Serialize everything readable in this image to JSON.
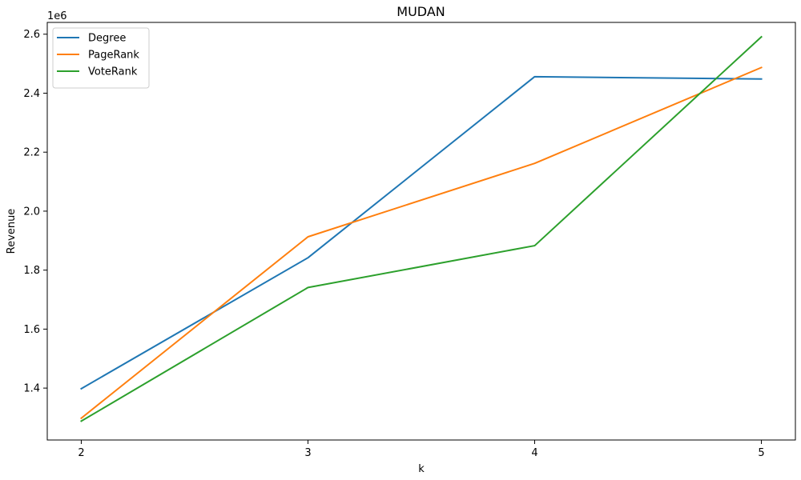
{
  "chart_data": {
    "type": "line",
    "title": "MUDAN",
    "xlabel": "k",
    "ylabel": "Revenue",
    "y_offset_label": "1e6",
    "x": [
      2,
      3,
      4,
      5
    ],
    "x_ticks": [
      "2",
      "3",
      "4",
      "5"
    ],
    "y_ticks": [
      1.4,
      1.6,
      1.8,
      2.0,
      2.2,
      2.4,
      2.6
    ],
    "y_tick_labels": [
      "1.4",
      "1.6",
      "1.8",
      "2.0",
      "2.2",
      "2.4",
      "2.6"
    ],
    "xlim": [
      1.85,
      5.15
    ],
    "ylim": [
      1.224,
      2.64
    ],
    "grid": false,
    "legend_position": "upper-left",
    "series": [
      {
        "name": "Degree",
        "color": "#1f77b4",
        "values": [
          1.398,
          1.842,
          2.456,
          2.448
        ]
      },
      {
        "name": "PageRank",
        "color": "#ff7f0e",
        "values": [
          1.298,
          1.913,
          2.162,
          2.487
        ]
      },
      {
        "name": "VoteRank",
        "color": "#2ca02c",
        "values": [
          1.288,
          1.741,
          1.883,
          2.591
        ]
      }
    ]
  }
}
